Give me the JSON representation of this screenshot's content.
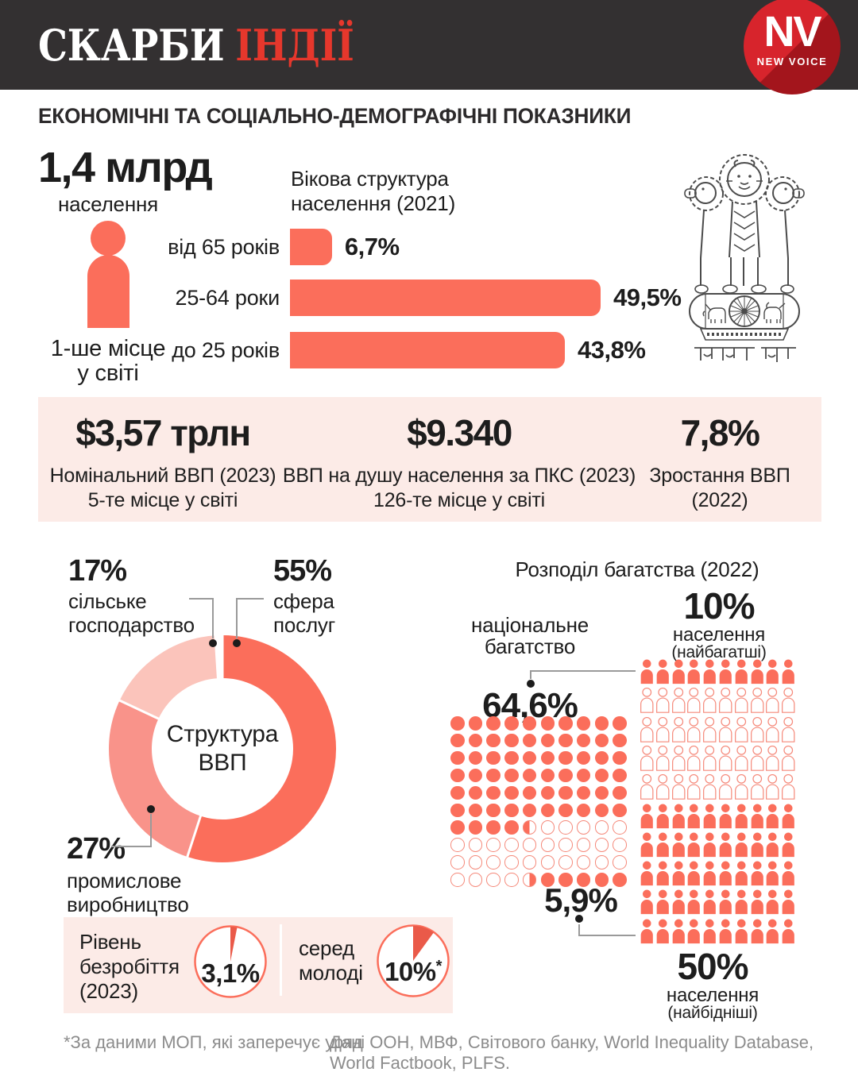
{
  "header": {
    "title_white": "СКАРБИ",
    "title_red": "ІНДІЇ",
    "logo_initials": "NV",
    "logo_name": "NEW VOICE"
  },
  "page_title": "ЕКОНОМІЧНІ ТА СОЦІАЛЬНО-ДЕМОГРАФІЧНІ ПОКАЗНИКИ",
  "population": {
    "value": "1,4 млрд",
    "label": "населення",
    "rank_line1": "1-ше місце",
    "rank_line2": "у світі"
  },
  "age_chart": {
    "title_line1": "Вікова структура",
    "title_line2": "населення (2021)"
  },
  "emblem": {
    "motto": "सत्यमेव जयते"
  },
  "gdp_stats": {
    "items": [
      {
        "value": "$3,57 трлн",
        "line1": "Номінальний ВВП (2023)",
        "line2": "5-те місце у світі"
      },
      {
        "value": "$9.340",
        "line1": "ВВП на душу населення за ПКС (2023)",
        "line2": "126-те місце у світі"
      },
      {
        "value": "7,8%",
        "line1": "Зростання ВВП",
        "line2": "(2022)"
      }
    ]
  },
  "gdp_donut_labels": {
    "center_line1": "Структура",
    "center_line2": "ВВП",
    "services_pct": "55%",
    "services_line1": "сфера",
    "services_line2": "послуг",
    "industry_pct": "27%",
    "industry_line1": "промислове",
    "industry_line2": "виробництво",
    "agriculture_pct": "17%",
    "agriculture_line1": "сільське",
    "agriculture_line2": "господарство"
  },
  "wealth": {
    "title": "Розподіл багатства (2022)",
    "national_line1": "національне",
    "national_line2": "багатство",
    "richest_wealth_share": "64,6%",
    "poorest_wealth_share": "5,9%",
    "rich_group_pct": "10%",
    "rich_group_line1": "населення",
    "rich_group_line2": "(найбагатші)",
    "poor_group_pct": "50%",
    "poor_group_line1": "населення",
    "poor_group_line2": "(найбідніші)"
  },
  "unemployment": {
    "label_line1": "Рівень",
    "label_line2": "безробіття",
    "label_line3": "(2023)",
    "value_label": "3,1%",
    "youth_label_line1": "серед",
    "youth_label_line2": "молоді",
    "youth_value_label": "10%",
    "asterisk": "*"
  },
  "footer": {
    "footnote": "*За даними МОП, які заперечує уряд",
    "sources": "Дані ООН, МВФ, Світового банку, World Inequality Database, World Factbook, PLFS."
  },
  "colors": {
    "salmon": "#fb6e5b",
    "salmon_medium": "#f9938a",
    "salmon_light": "#fbc4bb",
    "outline": "#f5897a",
    "pink_bg": "#fcebe7",
    "brand_red": "#d2232b",
    "accent_red": "#e6372c",
    "header_dark": "#333031",
    "wedge_red": "#ea5a49",
    "text_dark": "#1d1d1d",
    "text_gray": "#8c8c8c",
    "line_gray": "#9a9a9a",
    "emblem_gray": "#4b4b4b"
  },
  "chart_data": [
    {
      "id": "age_structure",
      "type": "bar",
      "title": "Вікова структура населення (2021)",
      "orientation": "horizontal",
      "unit": "%",
      "categories": [
        "від 65 років",
        "25-64 роки",
        "до 25 років"
      ],
      "values": [
        6.7,
        49.5,
        43.8
      ],
      "value_labels": [
        "6,7%",
        "49,5%",
        "43,8%"
      ],
      "xlim": [
        0,
        50
      ],
      "grid": false,
      "legend": "none"
    },
    {
      "id": "gdp_structure",
      "type": "donut",
      "title": "Структура ВВП",
      "start_angle_deg": 0,
      "direction": "clockwise",
      "segments": [
        {
          "label": "сфера послуг",
          "value": 55,
          "value_label": "55%",
          "color": "#fb6e5b"
        },
        {
          "label": "промислове виробництво",
          "value": 27,
          "value_label": "27%",
          "color": "#f9938a"
        },
        {
          "label": "сільське господарство",
          "value": 17,
          "value_label": "17%",
          "color": "#fbc4bb"
        }
      ]
    },
    {
      "id": "wealth_distribution",
      "type": "waffle",
      "title": "Розподіл багатства (2022)",
      "national_wealth": {
        "label": "національне багатство",
        "total_units": 100,
        "richest10_share_pct": 64.6,
        "poorest50_share_pct": 5.9
      },
      "population": {
        "total_units": 100,
        "rows": 10,
        "cols": 10,
        "richest_pct": 10,
        "middle_outlined_pct": 40,
        "poorest_pct": 50,
        "richest_label": "10% населення (найбагатші)",
        "poorest_label": "50% населення (найбідніші)"
      }
    },
    {
      "id": "unemployment",
      "type": "pie",
      "unit": "%",
      "series": [
        {
          "label": "Рівень безробіття (2023)",
          "value": 3.1,
          "value_label": "3,1%"
        },
        {
          "label": "серед молоді",
          "value": 10,
          "value_label": "10%*",
          "note": "*За даними МОП, які заперечує уряд"
        }
      ]
    }
  ]
}
